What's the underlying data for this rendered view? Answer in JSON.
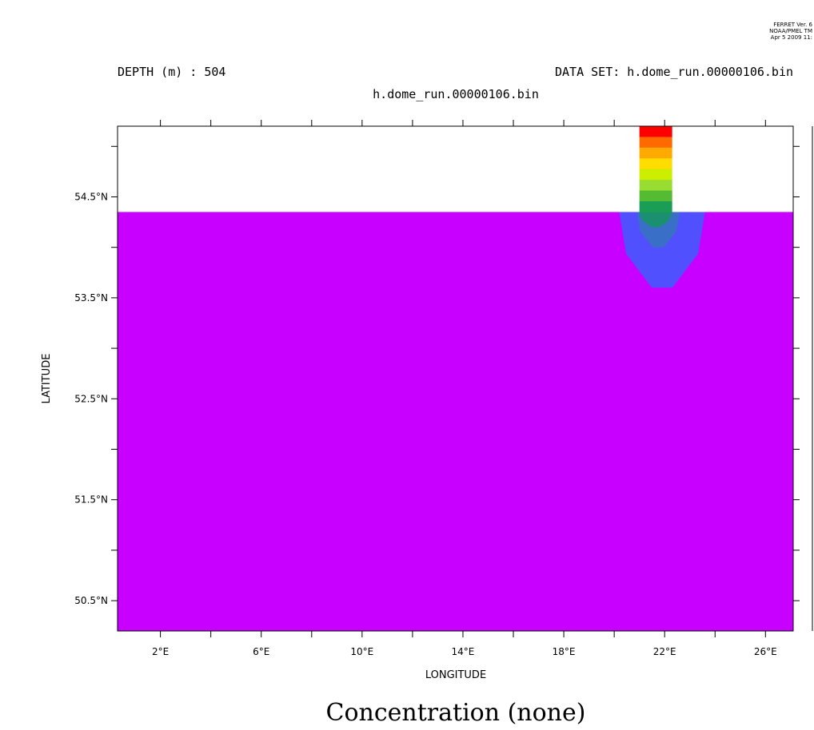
{
  "header": {
    "ferret_line1": "FERRET Ver. 6",
    "ferret_line2": "NOAA/PMEL TM",
    "ferret_line3": "Apr  5 2009 11:",
    "depth_label": "DEPTH (m) : 504",
    "dataset_label": "DATA SET: h.dome_run.00000106.bin",
    "subtitle": "h.dome_run.00000106.bin"
  },
  "chart_data": {
    "type": "heatmap",
    "title": "Concentration (none)",
    "xlabel": "LONGITUDE",
    "ylabel": "LATITUDE",
    "xlim": [
      0.3,
      27.1
    ],
    "ylim": [
      50.2,
      55.2
    ],
    "x_ticks": [
      2,
      6,
      10,
      14,
      18,
      22,
      26
    ],
    "x_tick_labels": [
      "2°E",
      "6°E",
      "10°E",
      "14°E",
      "18°E",
      "22°E",
      "26°E"
    ],
    "y_ticks": [
      50.5,
      51.5,
      52.5,
      53.5,
      54.5
    ],
    "y_tick_labels": [
      "50.5°N",
      "51.5°N",
      "52.5°N",
      "53.5°N",
      "54.5°N"
    ],
    "field_top_latitude": 54.35,
    "background_level_color": "#c800ff",
    "plume_column": {
      "lon_range": [
        21.0,
        22.3
      ],
      "lat_range": [
        54.35,
        55.2
      ],
      "levels_top_to_bottom": [
        "#ff0000",
        "#ff6a00",
        "#ffaa00",
        "#ffdd00",
        "#ccee00",
        "#99dd33",
        "#55bb33",
        "#1a9e55"
      ]
    },
    "plume_below_surface": [
      {
        "level": "outer",
        "color": "#5050ff",
        "lon_range": [
          20.2,
          23.6
        ],
        "lowest_lat": 53.6
      },
      {
        "level": "middle",
        "color": "#3a6fc8",
        "lon_range": [
          20.9,
          22.6
        ],
        "lowest_lat": 54.0
      },
      {
        "level": "inner",
        "color": "#1a9070",
        "lon_range": [
          21.0,
          22.3
        ],
        "lowest_lat": 54.2
      }
    ],
    "grid": false
  },
  "colors": {
    "frame": "#000000",
    "background": "#ffffff"
  }
}
